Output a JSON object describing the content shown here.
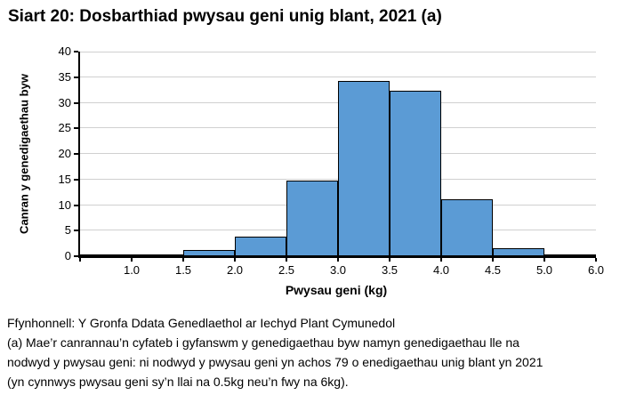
{
  "page_title": "Siart 20: Dosbarthiad pwysau geni unig blant, 2021 (a)",
  "chart_data": {
    "type": "bar",
    "subtype": "histogram",
    "title": "Siart 20: Dosbarthiad pwysau geni unig blant, 2021 (a)",
    "xlabel": "Pwysau geni (kg)",
    "ylabel": "Canran y genedigaethau byw",
    "ylim": [
      0,
      40
    ],
    "yticks": [
      0,
      5,
      10,
      15,
      20,
      25,
      30,
      35,
      40
    ],
    "bin_edges_kg": [
      0.5,
      1.0,
      1.5,
      2.0,
      2.5,
      3.0,
      3.5,
      4.0,
      4.5,
      5.0,
      6.0
    ],
    "x_tick_labels": [
      "1.0",
      "1.5",
      "2.0",
      "2.5",
      "3.0",
      "3.5",
      "4.0",
      "4.5",
      "5.0",
      "6.0"
    ],
    "categories": [
      "0.5-1.0",
      "1.0-1.5",
      "1.5-2.0",
      "2.0-2.5",
      "2.5-3.0",
      "3.0-3.5",
      "3.5-4.0",
      "4.0-4.5",
      "4.5-5.0",
      "5.0-6.0"
    ],
    "values": [
      0.2,
      0.4,
      1.2,
      3.8,
      14.7,
      34.3,
      32.3,
      11.2,
      1.6,
      0.3
    ],
    "grid": "horizontal",
    "legend": "none",
    "colors": {
      "bar_fill": "#5B9BD5",
      "bar_border": "#000000",
      "gridline": "#D0D0D0",
      "axis": "#000000"
    }
  },
  "footer": {
    "source": "Ffynhonnell: Y Gronfa Ddata Genedlaethol ar Iechyd Plant Cymunedol",
    "note_lines": [
      "(a) Mae’r canrannau’n cyfateb i gyfanswm y genedigaethau byw namyn genedigaethau lle na",
      "nodwyd y pwysau geni: ni nodwyd y pwysau geni yn achos 79 o enedigaethau unig blant yn 2021",
      "(yn cynnwys pwysau geni sy’n llai na 0.5kg neu’n fwy na 6kg)."
    ]
  }
}
